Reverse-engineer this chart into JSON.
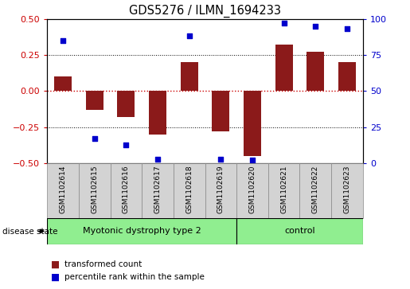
{
  "title": "GDS5276 / ILMN_1694233",
  "samples": [
    "GSM1102614",
    "GSM1102615",
    "GSM1102616",
    "GSM1102617",
    "GSM1102618",
    "GSM1102619",
    "GSM1102620",
    "GSM1102621",
    "GSM1102622",
    "GSM1102623"
  ],
  "red_values": [
    0.1,
    -0.13,
    -0.18,
    -0.3,
    0.2,
    -0.28,
    -0.45,
    0.32,
    0.27,
    0.2
  ],
  "blue_values": [
    85,
    17,
    13,
    3,
    88,
    3,
    2,
    97,
    95,
    93
  ],
  "ylim_left": [
    -0.5,
    0.5
  ],
  "ylim_right": [
    0,
    100
  ],
  "yticks_left": [
    -0.5,
    -0.25,
    0.0,
    0.25,
    0.5
  ],
  "yticks_right": [
    0,
    25,
    50,
    75,
    100
  ],
  "group1_label": "Myotonic dystrophy type 2",
  "group2_label": "control",
  "group1_count": 6,
  "group2_count": 4,
  "disease_state_label": "disease state",
  "legend1": "transformed count",
  "legend2": "percentile rank within the sample",
  "bar_color": "#8B1A1A",
  "dot_color": "#0000CC",
  "group_color": "#90EE90",
  "label_bg_color": "#D3D3D3",
  "bg_color": "#FFFFFF",
  "left_tick_color": "#CC0000",
  "right_tick_color": "#0000CC",
  "bar_width": 0.55,
  "dot_size": 14
}
